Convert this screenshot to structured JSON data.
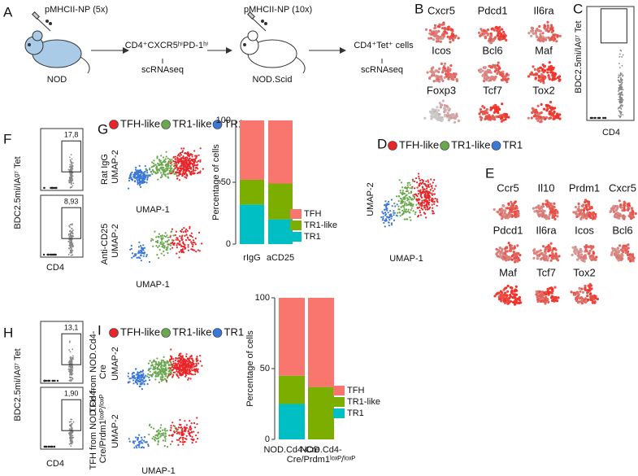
{
  "panel_labels": {
    "a": "A",
    "b": "B",
    "c": "C",
    "d": "D",
    "e": "E",
    "f": "F",
    "g": "G",
    "h": "H",
    "i": "I"
  },
  "panel_a": {
    "injection_1": "pMHCII-NP (5x)",
    "mouse_1": "NOD",
    "population_1": "CD4⁺CXCR5ʰⁱPD-1ʰⁱ",
    "method_1": "scRNAseq",
    "injection_2": "pMHCII-NP (10x)",
    "mouse_2": "NOD.Scid",
    "population_2": "CD4⁺Tet⁺ cells",
    "method_2": "scRNAseq"
  },
  "panel_b": {
    "genes": [
      "Cxcr5",
      "Pdcd1",
      "Il6ra",
      "Icos",
      "Bcl6",
      "Maf",
      "Foxp3",
      "Tcf7",
      "Tox2"
    ]
  },
  "panel_c": {
    "y_label": "BDC2.5mi/IAᵍ⁷ Tet",
    "x_label": "CD4"
  },
  "cluster_legend": [
    {
      "name": "TFH-like",
      "color": "#e8262a"
    },
    {
      "name": "TR1-like",
      "color": "#6aa84f"
    },
    {
      "name": "TR1",
      "color": "#3c78d8"
    }
  ],
  "panel_d": {
    "x_label": "UMAP-1",
    "y_label": "UMAP-2"
  },
  "panel_e": {
    "genes": [
      "Ccr5",
      "Il10",
      "Prdm1",
      "Cxcr5",
      "Pdcd1",
      "Il6ra",
      "Icos",
      "Bcl6",
      "Maf",
      "Tcf7",
      "Tox2"
    ]
  },
  "panel_f": {
    "gates": [
      "17,8",
      "8,93"
    ],
    "y_label": "BDC2.5mi/IAᵍ⁷ Tet",
    "x_label": "CD4"
  },
  "panel_g": {
    "row_labels": [
      "Rat IgG",
      "Anti-CD25"
    ],
    "x_label": "UMAP-1",
    "y_label": "UMAP-2"
  },
  "panel_h": {
    "gates": [
      "13,1",
      "1,90"
    ],
    "y_label": "BDC2.5mi/IAᵍ⁷ Tet",
    "x_label": "CD4",
    "row_labels": [
      "TFH from NOD.Cd4-Cre",
      "TFH from NOD.Cd4-Cre/Prdm1ˡᵒˣᴾ/ˡᵒˣᴾ"
    ]
  },
  "panel_i": {
    "x_label": "UMAP-1",
    "y_label": "UMAP-2"
  },
  "chart_data": [
    {
      "type": "bar",
      "stacked": true,
      "y_label": "Percentage of cells",
      "categories": [
        "rIgG",
        "aCD25"
      ],
      "series": [
        {
          "name": "TFH",
          "color": "#f8766d",
          "values": [
            48,
            51
          ]
        },
        {
          "name": "TR1-like",
          "color": "#7cae00",
          "values": [
            20,
            29
          ]
        },
        {
          "name": "TR1",
          "color": "#00bfc4",
          "values": [
            32,
            20
          ]
        }
      ],
      "ylim": [
        0,
        100
      ],
      "yticks": [
        0,
        50,
        100
      ]
    },
    {
      "type": "bar",
      "stacked": true,
      "y_label": "Percentage of cells",
      "categories": [
        "NOD.Cd4-Cre",
        "NOD.Cd4-Cre/Prdm1ˡᵒˣᴾ/ˡᵒˣᴾ"
      ],
      "series": [
        {
          "name": "TFH",
          "color": "#f8766d",
          "values": [
            55,
            63
          ]
        },
        {
          "name": "TR1-like",
          "color": "#7cae00",
          "values": [
            20,
            37
          ]
        },
        {
          "name": "TR1",
          "color": "#00bfc4",
          "values": [
            25,
            0
          ]
        }
      ],
      "ylim": [
        0,
        100
      ],
      "yticks": [
        0,
        50,
        100
      ]
    }
  ]
}
